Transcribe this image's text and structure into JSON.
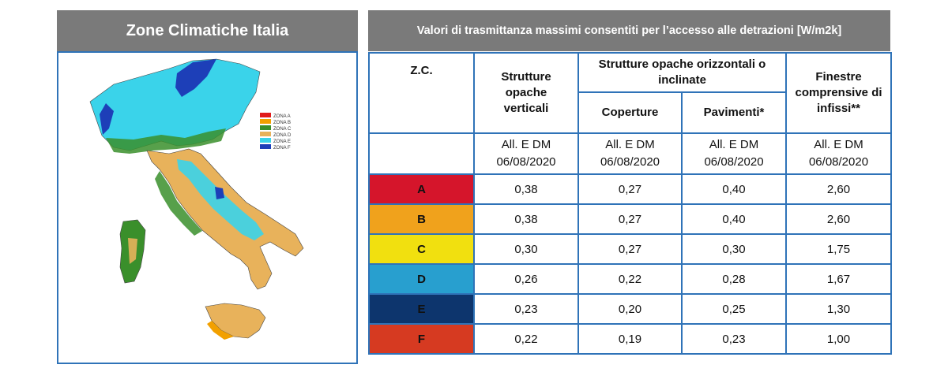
{
  "map": {
    "title": "Zone Climatiche Italia",
    "legend": [
      {
        "label": "ZONA A",
        "color": "#e11b1b"
      },
      {
        "label": "ZONA B",
        "color": "#f2a000"
      },
      {
        "label": "ZONA C",
        "color": "#3a8f2b"
      },
      {
        "label": "ZONA D",
        "color": "#e8b25b"
      },
      {
        "label": "ZONA E",
        "color": "#3ad3ea"
      },
      {
        "label": "ZONA F",
        "color": "#1d3fb8"
      }
    ]
  },
  "table": {
    "title": "Valori di trasmittanza massimi consentiti per l’accesso alle detrazioni [W/m2k]",
    "headers": {
      "zc": "Z.C.",
      "verticali": "Strutture opache verticali",
      "orizzontali": "Strutture opache orizzontali o inclinate",
      "coperture": "Coperture",
      "pavimenti": "Pavimenti*",
      "finestre": "Finestre comprensive di infissi**"
    },
    "norm": {
      "line1": "All. E DM",
      "line2": "06/08/2020"
    },
    "rows": [
      {
        "zone": "A",
        "color": "#d5152b",
        "v": "0,38",
        "cop": "0,27",
        "pav": "0,40",
        "fin": "2,60"
      },
      {
        "zone": "B",
        "color": "#f0a21c",
        "v": "0,38",
        "cop": "0,27",
        "pav": "0,40",
        "fin": "2,60"
      },
      {
        "zone": "C",
        "color": "#f1e00f",
        "v": "0,30",
        "cop": "0,27",
        "pav": "0,30",
        "fin": "1,75"
      },
      {
        "zone": "D",
        "color": "#289fcf",
        "v": "0,26",
        "cop": "0,22",
        "pav": "0,28",
        "fin": "1,67"
      },
      {
        "zone": "E",
        "color": "#0d356d",
        "v": "0,23",
        "cop": "0,20",
        "pav": "0,25",
        "fin": "1,30"
      },
      {
        "zone": "F",
        "color": "#d63a21",
        "v": "0,22",
        "cop": "0,19",
        "pav": "0,23",
        "fin": "1,00"
      }
    ]
  }
}
